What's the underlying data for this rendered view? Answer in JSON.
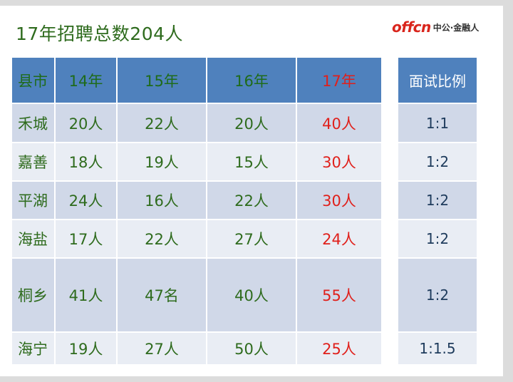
{
  "title": "17年招聘总数204人",
  "logo": {
    "mark": "offcn",
    "text": "中公·金融人"
  },
  "table": {
    "headers": [
      "县市",
      "14年",
      "15年",
      "16年",
      "17年"
    ],
    "rows": [
      {
        "city": "禾城",
        "y14": "20人",
        "y15": "22人",
        "y16": "20人",
        "y17": "40人"
      },
      {
        "city": "嘉善",
        "y14": "18人",
        "y15": "19人",
        "y16": "15人",
        "y17": "30人"
      },
      {
        "city": "平湖",
        "y14": "24人",
        "y15": "16人",
        "y16": "22人",
        "y17": "30人"
      },
      {
        "city": "海盐",
        "y14": "17人",
        "y15": "22人",
        "y16": "27人",
        "y17": "24人"
      },
      {
        "city": "桐乡",
        "y14": "41人",
        "y15": "47名",
        "y16": "40人",
        "y17": "55人"
      },
      {
        "city": "海宁",
        "y14": "19人",
        "y15": "27人",
        "y16": "50人",
        "y17": "25人"
      }
    ]
  },
  "ratio": {
    "header": "面试比例",
    "values": [
      "1:1",
      "1:2",
      "1:2",
      "1:2",
      "1:2",
      "1:1.5"
    ]
  },
  "colors": {
    "header_bg": "#4f81bd",
    "row_dark": "#d0d8e8",
    "row_light": "#e9edf4",
    "green_text": "#2e6b1d",
    "red_text": "#e0201b"
  }
}
